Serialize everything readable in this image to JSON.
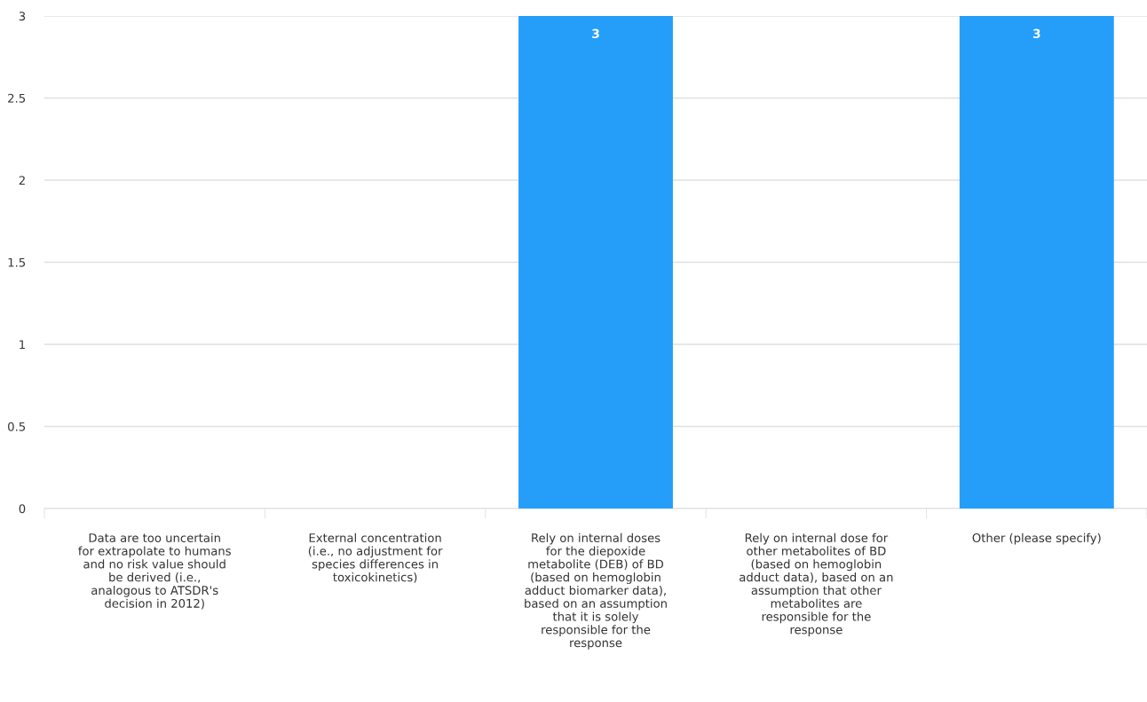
{
  "chart_data": {
    "type": "bar",
    "categories": [
      "Data are too uncertain\nfor extrapolate to humans\nand no risk value should\nbe derived (i.e.,\nanalogous to ATSDR's\ndecision in 2012)",
      "External concentration\n(i.e., no adjustment for\nspecies differences in\ntoxicokinetics)",
      "Rely on internal doses\nfor the diepoxide\nmetabolite (DEB) of BD\n(based on hemoglobin\nadduct biomarker data),\nbased on an assumption\nthat it is solely\nresponsible for the\nresponse",
      "Rely on internal dose for\nother metabolites of BD\n(based on hemoglobin\nadduct data), based on an\nassumption that other\nmetabolites are\nresponsible for the\nresponse",
      "Other (please specify)"
    ],
    "values": [
      0,
      0,
      3,
      0,
      3
    ],
    "value_labels": [
      null,
      null,
      "3",
      null,
      "3"
    ],
    "color": "#259efa",
    "ylim": [
      0,
      3
    ],
    "yticks": [
      0,
      {
        "value": 0.5,
        "label": "0.5"
      },
      1,
      {
        "value": 1.5,
        "label": "1.5"
      },
      2,
      {
        "value": 2.5,
        "label": "2.5"
      },
      3
    ],
    "grid": "y"
  }
}
